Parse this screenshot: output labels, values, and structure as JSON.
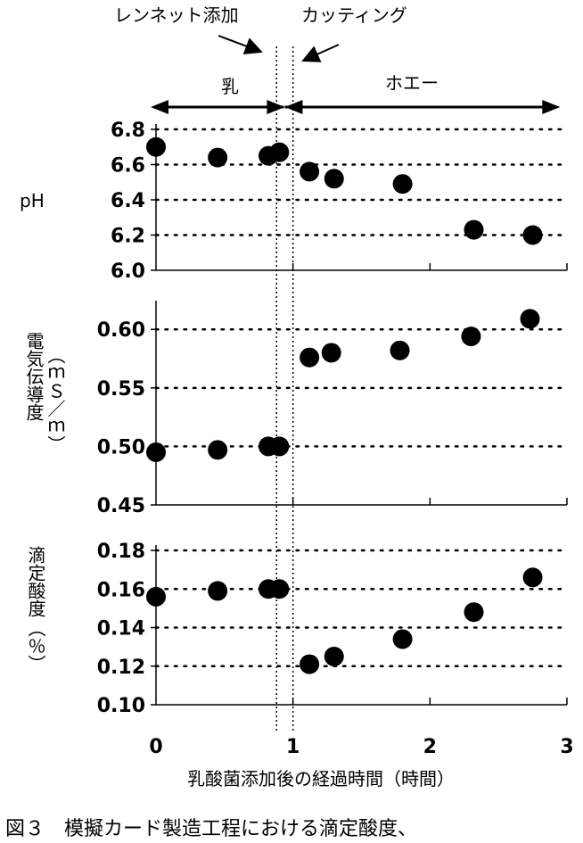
{
  "annotations": {
    "rennet": "レンネット添加",
    "cutting": "カッティング",
    "milk": "乳",
    "whey": "ホエー"
  },
  "caption": "図３　模擬カード製造工程における滴定酸度、",
  "x_axis": {
    "label": "乳酸菌添加後の経過時間（時間）",
    "ticks": [
      "0",
      "1",
      "2",
      "3"
    ],
    "range": [
      0,
      3
    ]
  },
  "colors": {
    "marker": "#000000",
    "grid": "#000000"
  },
  "chart_data": [
    {
      "type": "scatter",
      "ylabel": "pH",
      "ylim": [
        6.0,
        6.8
      ],
      "yticks": [
        "6.0",
        "6.2",
        "6.4",
        "6.6",
        "6.8"
      ],
      "grid": "horizontal dotted",
      "points": [
        {
          "x": 0.0,
          "y": 6.7
        },
        {
          "x": 0.45,
          "y": 6.64
        },
        {
          "x": 0.82,
          "y": 6.65
        },
        {
          "x": 0.9,
          "y": 6.67
        },
        {
          "x": 1.12,
          "y": 6.56
        },
        {
          "x": 1.3,
          "y": 6.52
        },
        {
          "x": 1.8,
          "y": 6.49
        },
        {
          "x": 2.32,
          "y": 6.23
        },
        {
          "x": 2.75,
          "y": 6.2
        }
      ]
    },
    {
      "type": "scatter",
      "ylabel_lines": [
        "電気伝導度",
        "（ｍＳ／ｍ）"
      ],
      "ylim": [
        0.45,
        0.62
      ],
      "yticks": [
        "0.45",
        "0.50",
        "0.55",
        "0.60"
      ],
      "grid": "horizontal dotted",
      "points": [
        {
          "x": 0.0,
          "y": 0.495
        },
        {
          "x": 0.45,
          "y": 0.497
        },
        {
          "x": 0.82,
          "y": 0.5
        },
        {
          "x": 0.9,
          "y": 0.5
        },
        {
          "x": 1.12,
          "y": 0.576
        },
        {
          "x": 1.28,
          "y": 0.58
        },
        {
          "x": 1.78,
          "y": 0.582
        },
        {
          "x": 2.3,
          "y": 0.594
        },
        {
          "x": 2.73,
          "y": 0.609
        }
      ]
    },
    {
      "type": "scatter",
      "ylabel_lines": [
        "滴定酸度",
        "（％）"
      ],
      "ylim": [
        0.1,
        0.18
      ],
      "yticks": [
        "0.10",
        "0.12",
        "0.14",
        "0.16",
        "0.18"
      ],
      "grid": "horizontal dotted",
      "points": [
        {
          "x": 0.0,
          "y": 0.156
        },
        {
          "x": 0.45,
          "y": 0.159
        },
        {
          "x": 0.82,
          "y": 0.16
        },
        {
          "x": 0.9,
          "y": 0.16
        },
        {
          "x": 1.12,
          "y": 0.121
        },
        {
          "x": 1.3,
          "y": 0.125
        },
        {
          "x": 1.8,
          "y": 0.134
        },
        {
          "x": 2.32,
          "y": 0.148
        },
        {
          "x": 2.75,
          "y": 0.166
        }
      ]
    }
  ],
  "events": {
    "rennet_x": 0.88,
    "cutting_x": 1.0
  }
}
